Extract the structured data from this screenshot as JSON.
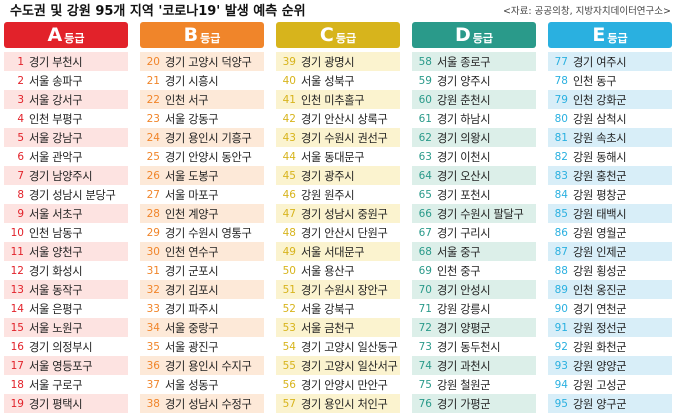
{
  "header": {
    "title": "수도권 및 강원 95개 지역 '코로나19' 발생 예측 순위",
    "source": "<자료: 공공의창, 지방자치데이터연구소>"
  },
  "grades": [
    {
      "letter": "A",
      "label": "등급",
      "color": "#e2222a",
      "alt": "#fde3e1",
      "rows": [
        {
          "rank": "1",
          "name": "경기 부천시"
        },
        {
          "rank": "2",
          "name": "서울 송파구"
        },
        {
          "rank": "3",
          "name": "서울 강서구"
        },
        {
          "rank": "4",
          "name": "인천 부평구"
        },
        {
          "rank": "5",
          "name": "서울 강남구"
        },
        {
          "rank": "6",
          "name": "서울 관악구"
        },
        {
          "rank": "7",
          "name": "경기 남양주시"
        },
        {
          "rank": "8",
          "name": "경기 성남시 분당구"
        },
        {
          "rank": "9",
          "name": "서울 서초구"
        },
        {
          "rank": "10",
          "name": "인천 남동구"
        },
        {
          "rank": "11",
          "name": "서울 양천구"
        },
        {
          "rank": "12",
          "name": "경기 화성시"
        },
        {
          "rank": "13",
          "name": "서울 동작구"
        },
        {
          "rank": "14",
          "name": "서울 은평구"
        },
        {
          "rank": "15",
          "name": "서울 노원구"
        },
        {
          "rank": "16",
          "name": "경기 의정부시"
        },
        {
          "rank": "17",
          "name": "서울 영등포구"
        },
        {
          "rank": "18",
          "name": "서울 구로구"
        },
        {
          "rank": "19",
          "name": "경기 평택시"
        }
      ]
    },
    {
      "letter": "B",
      "label": "등급",
      "color": "#f0852a",
      "alt": "#fde9d8",
      "rows": [
        {
          "rank": "20",
          "name": "경기 고양시 덕양구"
        },
        {
          "rank": "21",
          "name": "경기 시흥시"
        },
        {
          "rank": "22",
          "name": "인천 서구"
        },
        {
          "rank": "23",
          "name": "서울 강동구"
        },
        {
          "rank": "24",
          "name": "경기 용인시 기흥구"
        },
        {
          "rank": "25",
          "name": "경기 안양시 동안구"
        },
        {
          "rank": "26",
          "name": "서울 도봉구"
        },
        {
          "rank": "27",
          "name": "서울 마포구"
        },
        {
          "rank": "28",
          "name": "인천 계양구"
        },
        {
          "rank": "29",
          "name": "경기 수원시 영통구"
        },
        {
          "rank": "30",
          "name": "인천 연수구"
        },
        {
          "rank": "31",
          "name": "경기 군포시"
        },
        {
          "rank": "32",
          "name": "경기 김포시"
        },
        {
          "rank": "33",
          "name": "경기 파주시"
        },
        {
          "rank": "34",
          "name": "서울 중랑구"
        },
        {
          "rank": "35",
          "name": "서울 광진구"
        },
        {
          "rank": "36",
          "name": "경기 용인시 수지구"
        },
        {
          "rank": "37",
          "name": "서울 성동구"
        },
        {
          "rank": "38",
          "name": "경기 성남시 수정구"
        }
      ]
    },
    {
      "letter": "C",
      "label": "등급",
      "color": "#d7b41c",
      "alt": "#fbf3cf",
      "rows": [
        {
          "rank": "39",
          "name": "경기 광명시"
        },
        {
          "rank": "40",
          "name": "서울 성북구"
        },
        {
          "rank": "41",
          "name": "인천 미추홀구"
        },
        {
          "rank": "42",
          "name": "경기 안산시 상록구"
        },
        {
          "rank": "43",
          "name": "경기 수원시 권선구"
        },
        {
          "rank": "44",
          "name": "서울 동대문구"
        },
        {
          "rank": "45",
          "name": "경기 광주시"
        },
        {
          "rank": "46",
          "name": "강원 원주시"
        },
        {
          "rank": "47",
          "name": "경기 성남시 중원구"
        },
        {
          "rank": "48",
          "name": "경기 안산시 단원구"
        },
        {
          "rank": "49",
          "name": "서울 서대문구"
        },
        {
          "rank": "50",
          "name": "서울 용산구"
        },
        {
          "rank": "51",
          "name": "경기 수원시 장안구"
        },
        {
          "rank": "52",
          "name": "서울 강북구"
        },
        {
          "rank": "53",
          "name": "서울 금천구"
        },
        {
          "rank": "54",
          "name": "경기 고양시 일산동구"
        },
        {
          "rank": "55",
          "name": "경기 고양시 일산서구"
        },
        {
          "rank": "56",
          "name": "경기 안양시 만안구"
        },
        {
          "rank": "57",
          "name": "경기 용인시 처인구"
        }
      ]
    },
    {
      "letter": "D",
      "label": "등급",
      "color": "#2a9a8a",
      "alt": "#dcefe9",
      "rows": [
        {
          "rank": "58",
          "name": "서울 종로구"
        },
        {
          "rank": "59",
          "name": "경기 양주시"
        },
        {
          "rank": "60",
          "name": "강원 춘천시"
        },
        {
          "rank": "61",
          "name": "경기 하남시"
        },
        {
          "rank": "62",
          "name": "경기 의왕시"
        },
        {
          "rank": "63",
          "name": "경기 이천시"
        },
        {
          "rank": "64",
          "name": "경기 오산시"
        },
        {
          "rank": "65",
          "name": "경기 포천시"
        },
        {
          "rank": "66",
          "name": "경기 수원시 팔달구"
        },
        {
          "rank": "67",
          "name": "경기 구리시"
        },
        {
          "rank": "68",
          "name": "서울 중구"
        },
        {
          "rank": "69",
          "name": "인천 중구"
        },
        {
          "rank": "70",
          "name": "경기 안성시"
        },
        {
          "rank": "71",
          "name": "강원 강릉시"
        },
        {
          "rank": "72",
          "name": "경기 양평군"
        },
        {
          "rank": "73",
          "name": "경기 동두천시"
        },
        {
          "rank": "74",
          "name": "경기 과천시"
        },
        {
          "rank": "75",
          "name": "강원 철원군"
        },
        {
          "rank": "76",
          "name": "경기 가평군"
        }
      ]
    },
    {
      "letter": "E",
      "label": "등급",
      "color": "#2ab0e0",
      "alt": "#d8eef8",
      "rows": [
        {
          "rank": "77",
          "name": "경기 여주시"
        },
        {
          "rank": "78",
          "name": "인천 동구"
        },
        {
          "rank": "79",
          "name": "인천 강화군"
        },
        {
          "rank": "80",
          "name": "강원 삼척시"
        },
        {
          "rank": "81",
          "name": "강원 속초시"
        },
        {
          "rank": "82",
          "name": "강원 동해시"
        },
        {
          "rank": "83",
          "name": "강원 홍천군"
        },
        {
          "rank": "84",
          "name": "강원 평창군"
        },
        {
          "rank": "85",
          "name": "강원 태백시"
        },
        {
          "rank": "86",
          "name": "강원 영월군"
        },
        {
          "rank": "87",
          "name": "강원 인제군"
        },
        {
          "rank": "88",
          "name": "강원 횡성군"
        },
        {
          "rank": "89",
          "name": "인천 옹진군"
        },
        {
          "rank": "90",
          "name": "경기 연천군"
        },
        {
          "rank": "91",
          "name": "강원 정선군"
        },
        {
          "rank": "92",
          "name": "강원 화천군"
        },
        {
          "rank": "93",
          "name": "강원 양양군"
        },
        {
          "rank": "94",
          "name": "강원 고성군"
        },
        {
          "rank": "95",
          "name": "강원 양구군"
        }
      ]
    }
  ]
}
